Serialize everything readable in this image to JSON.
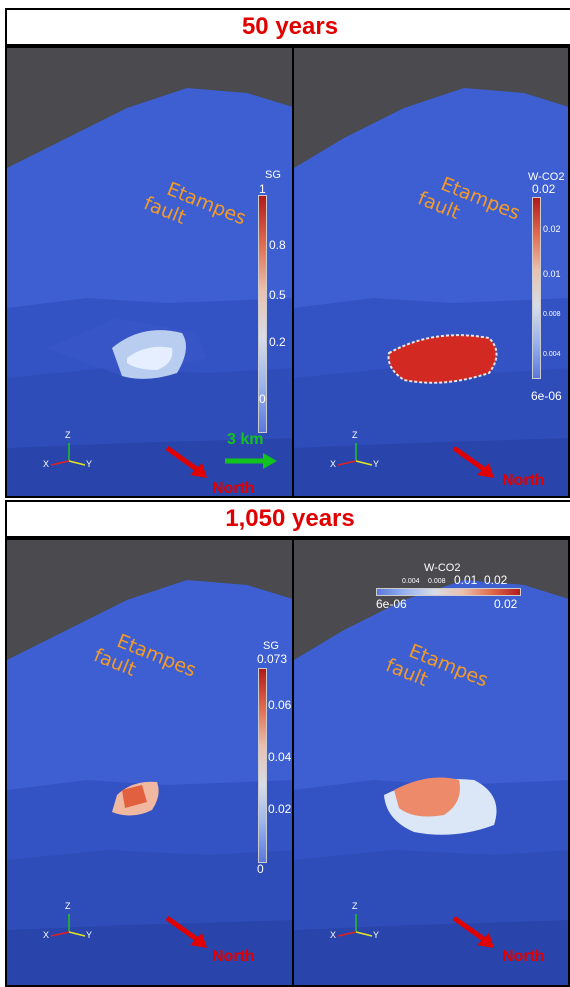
{
  "rows": [
    {
      "title": "50 years",
      "left": {
        "annotation_line1": "Etampes",
        "annotation_line2": "fault",
        "colorbar_title": "SG",
        "colorbar_ticks": [
          "1",
          "0.8",
          "0.5",
          "0.2",
          "0"
        ],
        "north_label": "North"
      },
      "right": {
        "annotation_line1": "Etampes",
        "annotation_line2": "fault",
        "colorbar_title": "W-CO2",
        "colorbar_top": "0.02",
        "colorbar_ticks": [
          "0.02",
          "0.01",
          "0.008",
          "0.004"
        ],
        "colorbar_bottom": "6e-06",
        "north_label": "North"
      },
      "scale_label": "3 km"
    },
    {
      "title": "1,050 years",
      "left": {
        "annotation_line1": "Etampes",
        "annotation_line2": "fault",
        "colorbar_title": "SG",
        "colorbar_top": "0.073",
        "colorbar_ticks": [
          "0.06",
          "0.04",
          "0.02",
          "0"
        ],
        "north_label": "North"
      },
      "right": {
        "annotation_line1": "Etampes",
        "annotation_line2": "fault",
        "colorbar_title": "W-CO2",
        "colorbar_small_ticks": [
          "0.004",
          "0.008"
        ],
        "colorbar_ticks": [
          "0.01",
          "0.02"
        ],
        "colorbar_left": "6e-06",
        "colorbar_right": "0.02",
        "north_label": "North"
      }
    }
  ],
  "axes": {
    "x": "X",
    "y": "Y",
    "z": "Z"
  },
  "colors": {
    "title": "#e00000",
    "annotation": "#f29a2a",
    "scale": "#12c31e",
    "mesh": "#3a5fd0",
    "background": "#4a4a4f"
  }
}
